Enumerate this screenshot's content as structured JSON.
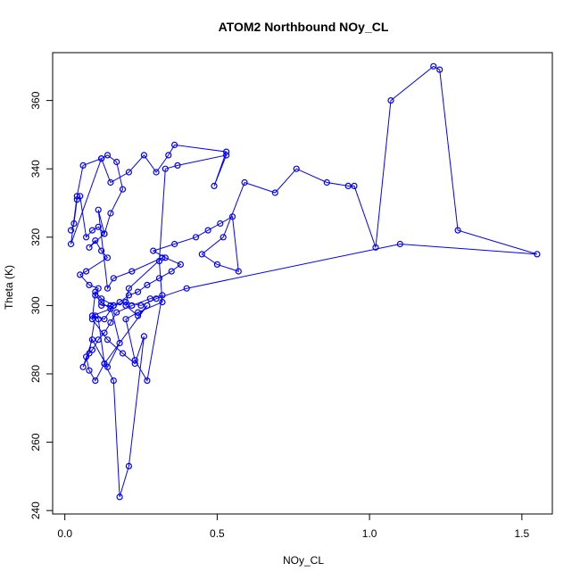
{
  "chart_data": {
    "type": "line",
    "title": "ATOM2 Northbound NOy_CL",
    "xlabel": "NOy_CL",
    "ylabel": "Theta (K)",
    "xlim": [
      -0.04,
      1.6
    ],
    "ylim": [
      239,
      374
    ],
    "x_ticks": [
      0.0,
      0.5,
      1.0,
      1.5
    ],
    "x_tick_labels": [
      "0.0",
      "0.5",
      "1.0",
      "1.5"
    ],
    "y_ticks": [
      240,
      260,
      280,
      300,
      320,
      340,
      360
    ],
    "y_tick_labels": [
      "240",
      "260",
      "280",
      "300",
      "320",
      "340",
      "360"
    ],
    "grid": false,
    "color": "#0000ff",
    "marker": "open-circle",
    "series": [
      {
        "x": [
          0.02,
          0.03,
          0.04,
          0.05,
          0.07,
          0.09,
          0.11,
          0.13,
          0.08,
          0.1,
          0.12,
          0.14,
          0.07,
          0.05,
          0.08,
          0.11,
          0.1,
          0.12,
          0.15,
          0.09,
          0.13,
          0.16,
          0.18,
          0.21,
          0.24,
          0.27,
          0.31,
          0.35,
          0.38,
          0.33,
          0.29,
          0.36,
          0.43,
          0.47,
          0.51,
          0.55,
          0.57,
          0.5,
          0.45,
          0.52,
          0.59,
          0.69,
          0.76,
          0.86,
          0.93,
          0.95,
          1.02,
          1.07,
          1.21,
          1.23,
          1.29,
          1.55,
          1.1,
          0.4,
          0.3,
          0.25,
          0.2,
          0.16,
          0.12,
          0.1,
          0.09,
          0.14,
          0.19,
          0.23,
          0.26,
          0.21,
          0.18,
          0.16,
          0.13,
          0.1,
          0.08,
          0.07,
          0.09,
          0.11,
          0.13,
          0.15,
          0.17,
          0.22,
          0.28,
          0.32,
          0.27,
          0.23,
          0.2,
          0.24,
          0.32,
          0.31,
          0.33,
          0.37,
          0.53,
          0.49,
          0.53,
          0.36,
          0.34,
          0.3,
          0.26,
          0.21,
          0.15,
          0.12,
          0.06,
          0.04,
          0.02,
          0.12,
          0.14,
          0.17,
          0.19,
          0.15,
          0.13,
          0.11,
          0.14,
          0.16,
          0.22,
          0.32,
          0.21,
          0.2,
          0.24,
          0.27,
          0.13,
          0.11,
          0.1,
          0.08,
          0.06,
          0.09,
          0.14,
          0.18,
          0.15,
          0.12
        ],
        "y": [
          322,
          324,
          331,
          332,
          320,
          322,
          323,
          321,
          317,
          319,
          316,
          314,
          310,
          309,
          306,
          305,
          303,
          301,
          299,
          297,
          296,
          300,
          301,
          303,
          304,
          306,
          308,
          310,
          312,
          314,
          316,
          318,
          320,
          322,
          324,
          326,
          310,
          312,
          315,
          320,
          336,
          333,
          340,
          336,
          335,
          335,
          317,
          360,
          370,
          369,
          322,
          315,
          318,
          305,
          302,
          300,
          301,
          300,
          302,
          304,
          296,
          290,
          286,
          283,
          291,
          253,
          244,
          278,
          283,
          278,
          281,
          285,
          287,
          290,
          292,
          295,
          298,
          300,
          302,
          303,
          278,
          284,
          296,
          298,
          301,
          313,
          340,
          341,
          344,
          335,
          345,
          347,
          344,
          339,
          344,
          339,
          336,
          343,
          341,
          332,
          318,
          343,
          344,
          342,
          334,
          327,
          321,
          328,
          305,
          308,
          310,
          314,
          305,
          300,
          297,
          300,
          283,
          296,
          297,
          286,
          282,
          290,
          282,
          289,
          300,
          300
        ]
      }
    ]
  }
}
